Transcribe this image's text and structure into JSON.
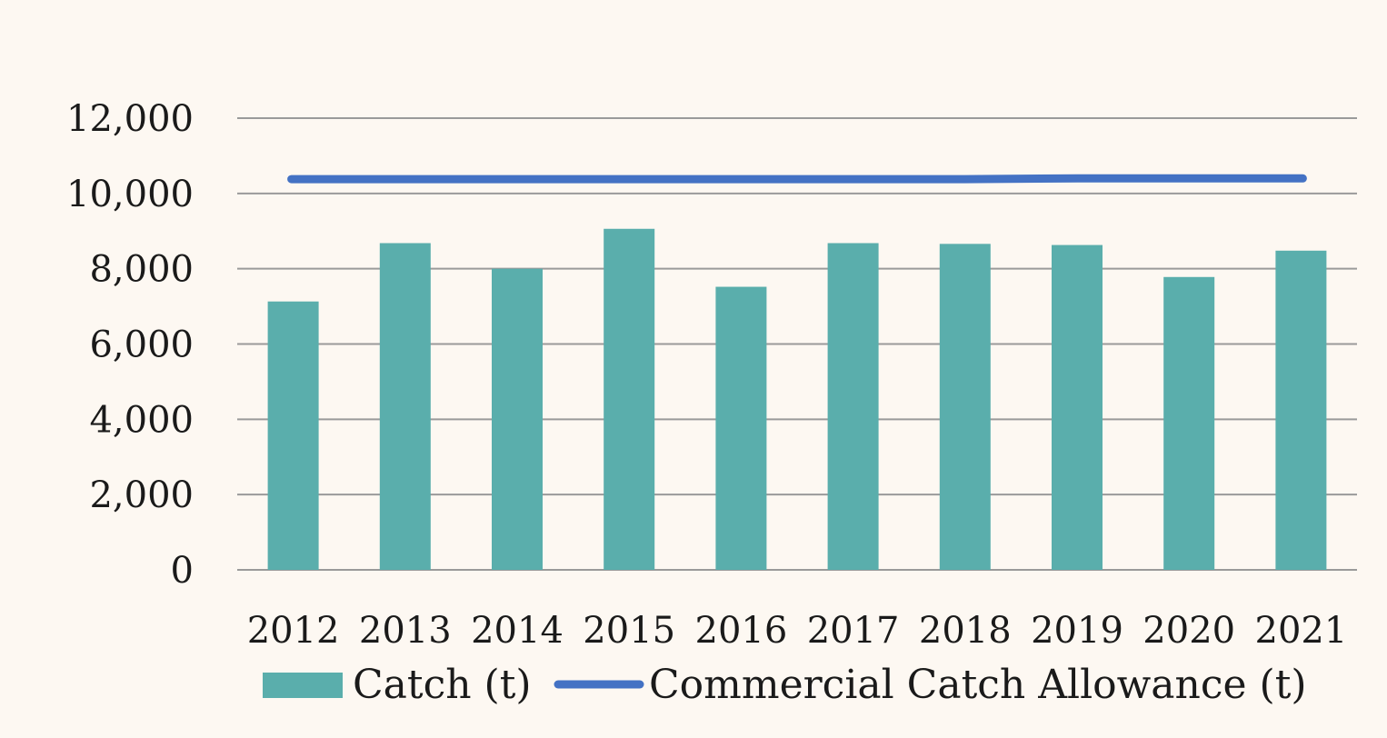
{
  "chart_data": {
    "type": "bar",
    "title": "",
    "xlabel": "",
    "ylabel": "",
    "categories": [
      "2012",
      "2013",
      "2014",
      "2015",
      "2016",
      "2017",
      "2018",
      "2019",
      "2020",
      "2021"
    ],
    "series": [
      {
        "name": "Catch (t)",
        "type": "bar",
        "color": "#5aaeac",
        "values": [
          7130,
          8680,
          8000,
          9060,
          7520,
          8680,
          8660,
          8630,
          7780,
          8480
        ]
      },
      {
        "name": "Commercial Catch Allowance (t)",
        "type": "line",
        "color": "#4472c4",
        "values": [
          10380,
          10380,
          10380,
          10380,
          10380,
          10380,
          10380,
          10400,
          10400,
          10400
        ]
      }
    ],
    "ylim": [
      0,
      12000
    ],
    "yticks": [
      0,
      2000,
      4000,
      6000,
      8000,
      10000,
      12000
    ],
    "ytick_labels": [
      "0",
      "2,000",
      "4,000",
      "6,000",
      "8,000",
      "10,000",
      "12,000"
    ],
    "grid": true,
    "grid_color": "#9a9a9a",
    "legend_position": "bottom"
  }
}
